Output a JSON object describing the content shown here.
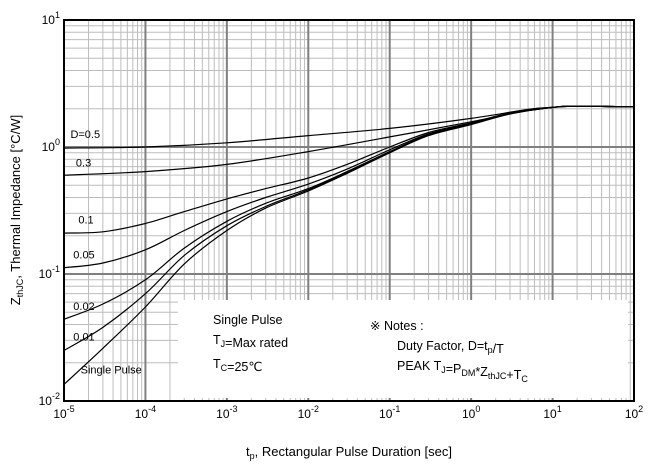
{
  "chart_data": {
    "type": "line",
    "title": "",
    "xlabel": {
      "main": "t",
      "sub": "p",
      "rest": ", Rectangular Pulse Duration [sec]"
    },
    "ylabel": {
      "main": "Z",
      "sub": "thJC",
      "rest": ", Thermal Impedance [°C/W]"
    },
    "xscale": "log",
    "yscale": "log",
    "xlim": [
      1e-05,
      100
    ],
    "ylim": [
      0.01,
      10
    ],
    "grid": true,
    "x_ticks": [
      {
        "base": "10",
        "exp": "-5"
      },
      {
        "base": "10",
        "exp": "-4"
      },
      {
        "base": "10",
        "exp": "-3"
      },
      {
        "base": "10",
        "exp": "-2"
      },
      {
        "base": "10",
        "exp": "-1"
      },
      {
        "base": "10",
        "exp": "0"
      },
      {
        "base": "10",
        "exp": "1"
      },
      {
        "base": "10",
        "exp": "2"
      }
    ],
    "y_ticks": [
      {
        "base": "10",
        "exp": "-2"
      },
      {
        "base": "10",
        "exp": "-1"
      },
      {
        "base": "10",
        "exp": "0"
      },
      {
        "base": "10",
        "exp": "1"
      }
    ],
    "series": [
      {
        "name": "D=0.5",
        "x": [
          1e-05,
          0.0001,
          0.001,
          0.01,
          0.1,
          1,
          5,
          10,
          20,
          100
        ],
        "y": [
          0.98,
          1.0,
          1.08,
          1.23,
          1.4,
          1.68,
          1.98,
          2.05,
          2.1,
          2.07
        ]
      },
      {
        "name": "0.3",
        "x": [
          1e-05,
          0.0001,
          0.001,
          0.01,
          0.1,
          1,
          5,
          10,
          20,
          100
        ],
        "y": [
          0.6,
          0.64,
          0.73,
          0.92,
          1.2,
          1.58,
          1.97,
          2.05,
          2.1,
          2.07
        ]
      },
      {
        "name": "0.1",
        "x": [
          1e-05,
          3e-05,
          0.0001,
          0.0003,
          0.001,
          0.003,
          0.01,
          0.03,
          0.1,
          0.3,
          1,
          3,
          10,
          20,
          100
        ],
        "y": [
          0.21,
          0.215,
          0.25,
          0.31,
          0.39,
          0.47,
          0.57,
          0.73,
          1.0,
          1.3,
          1.55,
          1.85,
          2.05,
          2.1,
          2.07
        ]
      },
      {
        "name": "0.05",
        "x": [
          1e-05,
          3e-05,
          0.0001,
          0.0003,
          0.001,
          0.003,
          0.01,
          0.03,
          0.1,
          0.3,
          1,
          3,
          10,
          20,
          100
        ],
        "y": [
          0.112,
          0.122,
          0.155,
          0.22,
          0.31,
          0.4,
          0.51,
          0.67,
          0.95,
          1.27,
          1.53,
          1.84,
          2.05,
          2.1,
          2.07
        ]
      },
      {
        "name": "0.02",
        "x": [
          1e-05,
          3e-05,
          0.0001,
          0.0003,
          0.001,
          0.003,
          0.01,
          0.03,
          0.1,
          0.3,
          1,
          3,
          10,
          20,
          100
        ],
        "y": [
          0.044,
          0.058,
          0.09,
          0.16,
          0.26,
          0.36,
          0.47,
          0.64,
          0.92,
          1.25,
          1.52,
          1.83,
          2.05,
          2.1,
          2.07
        ]
      },
      {
        "name": "0.01",
        "x": [
          1e-05,
          3e-05,
          0.0001,
          0.0003,
          0.001,
          0.003,
          0.01,
          0.03,
          0.1,
          0.3,
          1,
          3,
          10,
          20,
          100
        ],
        "y": [
          0.025,
          0.038,
          0.07,
          0.14,
          0.24,
          0.34,
          0.46,
          0.63,
          0.91,
          1.24,
          1.51,
          1.83,
          2.05,
          2.1,
          2.07
        ]
      },
      {
        "name": "Single Pulse",
        "x": [
          1e-05,
          3e-05,
          0.0001,
          0.0003,
          0.001,
          0.003,
          0.01,
          0.03,
          0.1,
          0.3,
          1,
          3,
          10,
          20,
          100
        ],
        "y": [
          0.0135,
          0.026,
          0.055,
          0.12,
          0.22,
          0.33,
          0.45,
          0.62,
          0.9,
          1.23,
          1.5,
          1.82,
          2.05,
          2.1,
          2.07
        ]
      }
    ],
    "curve_labels": [
      {
        "text": "D=0.5",
        "x": 1.2e-05,
        "y": 1.18
      },
      {
        "text": "0.3",
        "x": 1.4e-05,
        "y": 0.7
      },
      {
        "text": "0.1",
        "x": 1.5e-05,
        "y": 0.25
      },
      {
        "text": "0.05",
        "x": 1.3e-05,
        "y": 0.133
      },
      {
        "text": "0.02",
        "x": 1.3e-05,
        "y": 0.052
      },
      {
        "text": "0.01",
        "x": 1.3e-05,
        "y": 0.03
      },
      {
        "text": "Single Pulse",
        "x": 1.6e-05,
        "y": 0.0165
      }
    ],
    "annotations": {
      "conditions": [
        {
          "parts": [
            {
              "t": "Single Pulse"
            }
          ]
        },
        {
          "parts": [
            {
              "t": "T"
            },
            {
              "t": "J",
              "sub": true
            },
            {
              "t": "=Max rated"
            }
          ]
        },
        {
          "parts": [
            {
              "t": "T"
            },
            {
              "t": "C",
              "sub": true
            },
            {
              "t": "=25℃"
            }
          ]
        }
      ],
      "notes_title": "※ Notes :",
      "notes": [
        {
          "parts": [
            {
              "t": "Duty Factor, D=t"
            },
            {
              "t": "p",
              "sub": true
            },
            {
              "t": "/T"
            }
          ]
        },
        {
          "parts": [
            {
              "t": "PEAK T"
            },
            {
              "t": "J",
              "sub": true
            },
            {
              "t": "=P"
            },
            {
              "t": "DM",
              "sub": true
            },
            {
              "t": "*Z"
            },
            {
              "t": "thJC",
              "sub": true
            },
            {
              "t": "+T"
            },
            {
              "t": "C",
              "sub": true
            }
          ]
        }
      ]
    }
  }
}
